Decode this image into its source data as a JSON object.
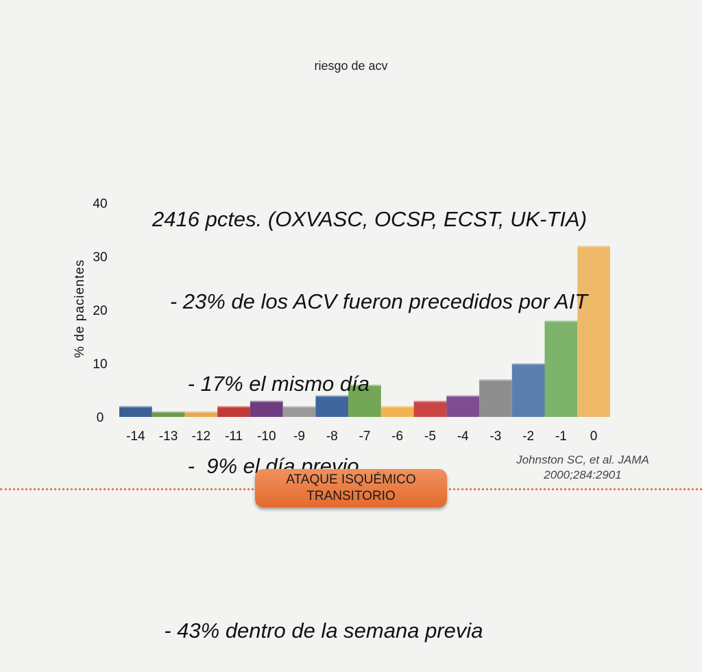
{
  "slide": {
    "header": "riesgo de acv",
    "annotation": [
      "2416 pctes. (OXVASC, OCSP, ECST, UK-TIA)",
      "   - 23% de los ACV fueron precedidos por AIT",
      "      - 17% el mismo día",
      "      -  9% el día previo",
      "",
      "  - 43% dentro de la semana previa"
    ],
    "citation": [
      "Johnston SC, et al.  JAMA",
      "2000;284:2901"
    ],
    "badge": [
      "ATAQUE ISQUÉMICO",
      "TRANSITORIO"
    ],
    "accent": "#e8773f"
  },
  "chart_data": {
    "type": "bar",
    "categories": [
      "-14",
      "-13",
      "-12",
      "-11",
      "-10",
      "-9",
      "-8",
      "-7",
      "-6",
      "-5",
      "-4",
      "-3",
      "-2",
      "-1",
      "0"
    ],
    "values": [
      2,
      1,
      1,
      2,
      3,
      2,
      4,
      6,
      2,
      3,
      4,
      7,
      10,
      18,
      32
    ],
    "colors": [
      "#3a5f94",
      "#6b9a48",
      "#e7a84f",
      "#c03a36",
      "#6f3c82",
      "#9a9a9a",
      "#3f679e",
      "#73a655",
      "#f0b350",
      "#cc4545",
      "#7e4d91",
      "#8e8e8e",
      "#5a7fae",
      "#7db36a",
      "#efb96a"
    ],
    "ylabel": "% de pacientes",
    "xlabel": "",
    "yticks": [
      0,
      10,
      20,
      30,
      40
    ],
    "ylim": [
      0,
      40
    ],
    "grid": false
  }
}
